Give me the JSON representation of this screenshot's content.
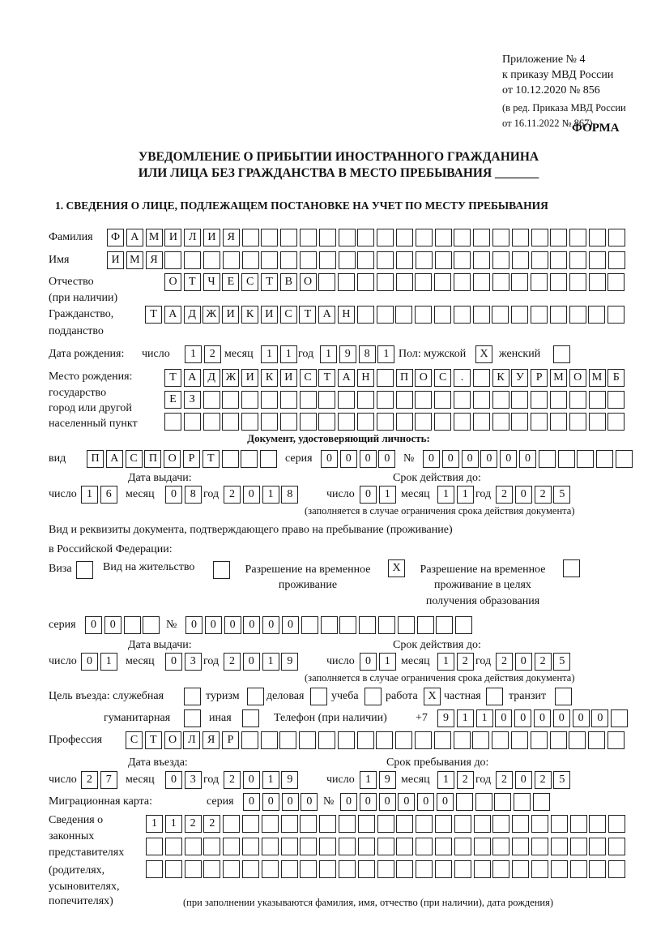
{
  "header": {
    "appendix": [
      "Приложение № 4",
      "к приказу МВД России",
      "от 10.12.2020 № 856"
    ],
    "amendment": [
      "(в ред. Приказа МВД России",
      "от 16.11.2022 № 867)"
    ],
    "form_label": "ФОРМА",
    "title_line1": "УВЕДОМЛЕНИЕ О ПРИБЫТИИ ИНОСТРАННОГО ГРАЖДАНИНА",
    "title_line2": "ИЛИ ЛИЦА БЕЗ ГРАЖДАНСТВА В МЕСТО ПРЕБЫВАНИЯ _______",
    "section1": "1. СВЕДЕНИЯ О ЛИЦЕ, ПОДЛЕЖАЩЕМ ПОСТАНОВКЕ НА УЧЕТ ПО МЕСТУ ПРЕБЫВАНИЯ"
  },
  "labels": {
    "surname": "Фамилия",
    "name": "Имя",
    "patronymic": "Отчество",
    "patronymic_note": "(при наличии)",
    "citizenship": "Гражданство,",
    "citizenship2": "подданство",
    "birth_date": "Дата рождения:",
    "day": "число",
    "month": "месяц",
    "year": "год",
    "sex": "Пол: мужской",
    "female": "женский",
    "birthplace": [
      "Место рождения:",
      "государство",
      "город или другой",
      "населенный пункт"
    ],
    "id_doc": "Документ, удостоверяющий личность:",
    "kind": "вид",
    "series": "серия",
    "number": "№",
    "issue_date": "Дата выдачи:",
    "valid_until": "Срок действия до:",
    "validity_note": "(заполняется в случае ограничения срока действия документа)",
    "right_doc": "Вид и реквизиты документа, подтверждающего право на пребывание (проживание)",
    "right_doc2": "в Российской Федерации:",
    "visa": "Виза",
    "residence": "Вид на жительство",
    "temp_residence": [
      "Разрешение на временное",
      "проживание"
    ],
    "temp_residence_edu": [
      "Разрешение на временное",
      "проживание в целях",
      "получения образования"
    ],
    "purpose": "Цель въезда: служебная",
    "tourism": "туризм",
    "business": "деловая",
    "study": "учеба",
    "work": "работа",
    "private": "частная",
    "transit": "транзит",
    "humanitarian": "гуманитарная",
    "other": "иная",
    "phone": "Телефон (при наличии)",
    "phone_prefix": "+7",
    "profession": "Профессия",
    "entry_date": "Дата въезда:",
    "stay_until": "Срок пребывания до:",
    "migration_card": "Миграционная карта:",
    "representatives": [
      "Сведения о",
      "законных",
      "представителях",
      "(родителях,",
      "усыновителях,",
      "попечителях)"
    ],
    "representatives_note": "(при заполнении указываются фамилия, имя, отчество (при наличии), дата рождения)"
  },
  "person": {
    "surname": "ФАМИЛИЯ",
    "name": "ИМЯ",
    "patronymic": "ОТЧЕСТВО",
    "citizenship": "ТАДЖИКИСТАН",
    "birth_day": "12",
    "birth_month": "11",
    "birth_year": "1981",
    "sex_male": "X",
    "sex_female": "",
    "birthplace": [
      "ТАДЖИКИСТАН ПОС. КУРМОМБ",
      "ЕЗ",
      ""
    ]
  },
  "id_document": {
    "kind": "ПАСПОРТ",
    "series": "0000",
    "number": "000000",
    "issue_day": "16",
    "issue_month": "08",
    "issue_year": "2018",
    "valid_day": "01",
    "valid_month": "11",
    "valid_year": "2025"
  },
  "right_document": {
    "visa": "",
    "residence": "",
    "temp_residence": "X",
    "temp_residence_edu": "",
    "series": "00",
    "number": "000000",
    "issue_day": "01",
    "issue_month": "03",
    "issue_year": "2019",
    "valid_day": "01",
    "valid_month": "12",
    "valid_year": "2025"
  },
  "purpose": {
    "official": "",
    "tourism": "",
    "business": "",
    "study": "",
    "work": "X",
    "private": "",
    "transit": "",
    "humanitarian": "",
    "other": ""
  },
  "phone": "911000000",
  "profession": "СТОЛЯР",
  "entry": {
    "day": "27",
    "month": "03",
    "year": "2019",
    "stay_day": "19",
    "stay_month": "12",
    "stay_year": "2025"
  },
  "migration_card": {
    "series": "0000",
    "number": "000000"
  },
  "representatives": [
    "1122",
    "",
    ""
  ]
}
